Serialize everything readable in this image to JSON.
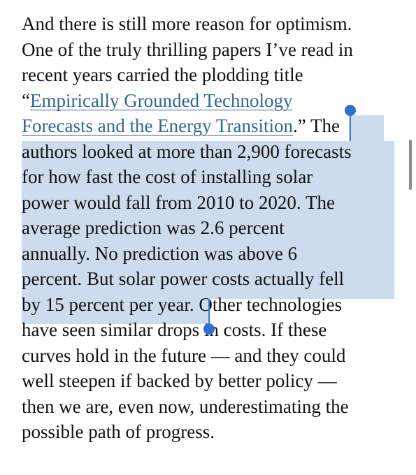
{
  "article": {
    "paragraph_lines": {
      "l1": "And there is still more reason for optimism.",
      "l2": "One of the truly thrilling papers I’ve read in",
      "l3": "recent years carried the plodding title",
      "l4_open_quote": "“",
      "l4_link": "Empirically Grounded Technology",
      "l5_link": "Forecasts and the Energy Transition",
      "l5_close": ".”",
      "l5_selected": "The",
      "l6": "authors looked at more than 2,900 forecasts",
      "l7": "for how fast the cost of installing solar",
      "l8": "power would fall from 2010 to 2020. The",
      "l9": "average prediction was 2.6 percent",
      "l10": "annually. No prediction was above 6",
      "l11": "percent. But solar power costs actually fell",
      "l12_selected": "by 15 percent per year",
      "l12_rest": ". Other technologies",
      "l13": "have seen similar drops in costs. If these",
      "l14": "curves hold in the future — and they could",
      "l15": "well steepen if backed by better policy —",
      "l16": "then we are, even now, underestimating the",
      "l17": "possible path of progress."
    }
  },
  "colors": {
    "text": "#121212",
    "link": "#326891",
    "selection_highlight": "#cddcec",
    "selection_handle": "#2f6fd0"
  },
  "icons": {
    "start_handle": "selection-start-handle",
    "end_handle": "selection-end-handle"
  }
}
